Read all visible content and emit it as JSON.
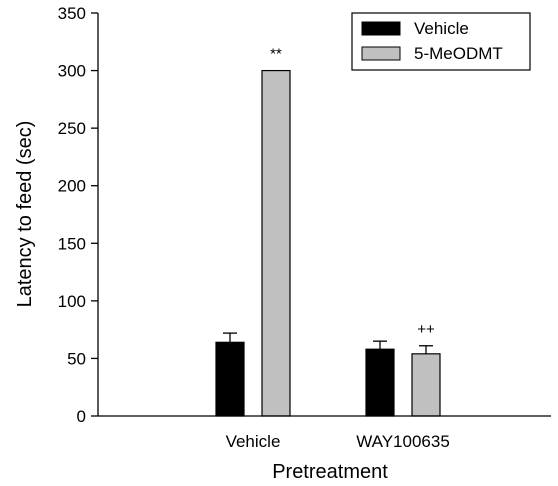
{
  "chart_data": {
    "type": "bar",
    "xlabel": "Pretreatment",
    "ylabel": "Latency to feed (sec)",
    "ylim": [
      0,
      350
    ],
    "yticks": [
      0,
      50,
      100,
      150,
      200,
      250,
      300,
      350
    ],
    "grid": false,
    "legend_position": "top-right",
    "categories": [
      "Vehicle",
      "WAY100635"
    ],
    "series": [
      {
        "name": "Vehicle",
        "color": "#000000",
        "values": [
          64,
          58
        ],
        "errors": [
          8,
          7
        ]
      },
      {
        "name": "5-MeODMT",
        "color": "#c0c0c0",
        "values": [
          300,
          54
        ],
        "errors": [
          0,
          7
        ]
      }
    ],
    "annotations": [
      {
        "text": "**",
        "category": "Vehicle",
        "series": "5-MeODMT"
      },
      {
        "text": "++",
        "category": "WAY100635",
        "series": "5-MeODMT"
      }
    ]
  }
}
